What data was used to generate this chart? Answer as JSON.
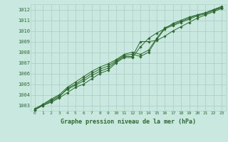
{
  "title": "Graphe pression niveau de la mer (hPa)",
  "bg_color": "#c8e8e0",
  "grid_color": "#b0d0c8",
  "line_color": "#2d6a2d",
  "text_color": "#2d6a2d",
  "ylim": [
    1002.5,
    1012.5
  ],
  "xlim": [
    -0.5,
    23.5
  ],
  "yticks": [
    1003,
    1004,
    1005,
    1006,
    1007,
    1008,
    1009,
    1010,
    1011,
    1012
  ],
  "xticks": [
    0,
    1,
    2,
    3,
    4,
    5,
    6,
    7,
    8,
    9,
    10,
    11,
    12,
    13,
    14,
    15,
    16,
    17,
    18,
    19,
    20,
    21,
    22,
    23
  ],
  "lines": [
    [
      1002.6,
      1003.0,
      1003.3,
      1003.7,
      1004.2,
      1004.7,
      1005.0,
      1005.5,
      1006.0,
      1006.3,
      1007.0,
      1007.5,
      1007.5,
      1008.5,
      1009.3,
      1009.8,
      1010.2,
      1010.7,
      1011.0,
      1011.3,
      1011.5,
      1011.7,
      1012.0,
      1012.2
    ],
    [
      1002.7,
      1003.1,
      1003.5,
      1003.9,
      1004.5,
      1004.9,
      1005.3,
      1005.8,
      1006.2,
      1006.5,
      1007.1,
      1007.6,
      1007.6,
      1009.0,
      1009.0,
      1009.1,
      1009.5,
      1010.0,
      1010.4,
      1010.8,
      1011.2,
      1011.5,
      1011.8,
      1012.1
    ],
    [
      1002.6,
      1003.0,
      1003.4,
      1003.8,
      1004.6,
      1005.0,
      1005.5,
      1006.0,
      1006.4,
      1006.7,
      1007.2,
      1007.7,
      1007.8,
      1007.6,
      1008.0,
      1009.2,
      1010.2,
      1010.5,
      1010.8,
      1011.1,
      1011.4,
      1011.6,
      1011.9,
      1012.2
    ],
    [
      1002.6,
      1003.1,
      1003.6,
      1004.0,
      1004.7,
      1005.2,
      1005.7,
      1006.2,
      1006.6,
      1006.9,
      1007.3,
      1007.8,
      1008.0,
      1007.8,
      1008.2,
      1009.3,
      1010.3,
      1010.6,
      1010.9,
      1011.2,
      1011.5,
      1011.7,
      1012.0,
      1012.3
    ]
  ]
}
